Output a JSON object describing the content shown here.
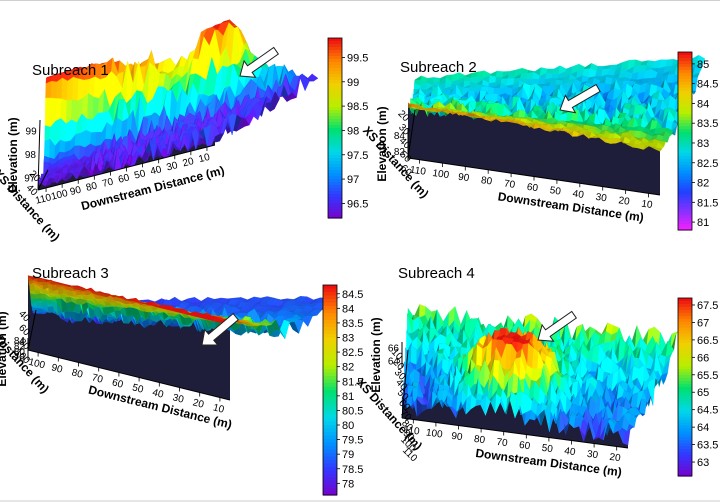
{
  "chart_data": [
    {
      "type": "surface",
      "title": "Subreach 1",
      "xlabel": "Downstream Distance (m)",
      "ylabel": "XS Distance (m)",
      "zlabel": "Elevation (m)",
      "x_ticks": [
        "110",
        "100",
        "90",
        "80",
        "70",
        "60",
        "50",
        "40",
        "30",
        "20",
        "10"
      ],
      "y_ticks": [
        "20",
        "40"
      ],
      "z_ticks": [
        "99",
        "98",
        "97"
      ],
      "colorbar_ticks": [
        "99.5",
        "99",
        "98.5",
        "98",
        "97.5",
        "97",
        "96.5"
      ],
      "colorbar_range": [
        96.2,
        99.9
      ],
      "arrow": true
    },
    {
      "type": "surface",
      "title": "Subreach 2",
      "xlabel": "Downstream Distance (m)",
      "ylabel": "XS Distance (m)",
      "zlabel": "Elevation (m)",
      "x_ticks": [
        "110",
        "100",
        "90",
        "80",
        "70",
        "60",
        "50",
        "40",
        "30",
        "20",
        "10"
      ],
      "y_ticks": [
        "20",
        "30",
        "40",
        "50",
        "60"
      ],
      "z_ticks": [
        "84",
        "82"
      ],
      "colorbar_ticks": [
        "85",
        "84.5",
        "84",
        "83.5",
        "83",
        "82.5",
        "82",
        "81.5",
        "81"
      ],
      "colorbar_range": [
        80.8,
        85.3
      ],
      "arrow": true
    },
    {
      "type": "surface",
      "title": "Subreach 3",
      "xlabel": "Downstream Distance (m)",
      "ylabel": "XS Distance (m)",
      "zlabel": "Elevation (m)",
      "x_ticks": [
        "100",
        "90",
        "80",
        "70",
        "60",
        "50",
        "40",
        "30",
        "20",
        "10"
      ],
      "y_ticks": [
        "40",
        "60",
        "80",
        "100"
      ],
      "z_ticks": [
        "84",
        "82",
        "80",
        "78"
      ],
      "colorbar_ticks": [
        "84.5",
        "84",
        "83.5",
        "83",
        "82.5",
        "82",
        "81.5",
        "81",
        "80.5",
        "80",
        "79.5",
        "79",
        "78.5",
        "78"
      ],
      "colorbar_range": [
        77.6,
        84.8
      ],
      "arrow": true
    },
    {
      "type": "surface",
      "title": "Subreach 4",
      "xlabel": "Downstream Distance (m)",
      "ylabel": "XS Distance (m)",
      "zlabel": "Elevation (m)",
      "x_ticks": [
        "110",
        "100",
        "90",
        "80",
        "70",
        "60",
        "50",
        "40",
        "30",
        "20"
      ],
      "y_ticks": [
        "10",
        "20",
        "30",
        "40",
        "50",
        "60",
        "70",
        "80",
        "90",
        "100",
        "110"
      ],
      "z_ticks": [
        "66",
        "64"
      ],
      "colorbar_ticks": [
        "67.5",
        "67",
        "66.5",
        "66",
        "65.5",
        "65",
        "64.5",
        "64",
        "63.5",
        "63"
      ],
      "colorbar_range": [
        62.6,
        67.7
      ],
      "arrow": true
    }
  ],
  "colors": {
    "colormap": [
      "#7a00c8",
      "#3535ff",
      "#0090ff",
      "#00d8e8",
      "#00e070",
      "#b8ee00",
      "#f0d000",
      "#ff8800",
      "#ee1010"
    ],
    "colormap_s2": [
      "#ff20ff",
      "#8a30ff",
      "#2040ff",
      "#0090ff",
      "#00d8e8",
      "#00e070",
      "#b8ee00",
      "#f0d000",
      "#ff8800",
      "#ee1010"
    ],
    "frame": "#000000",
    "arrow_fill": "#ffffff"
  }
}
